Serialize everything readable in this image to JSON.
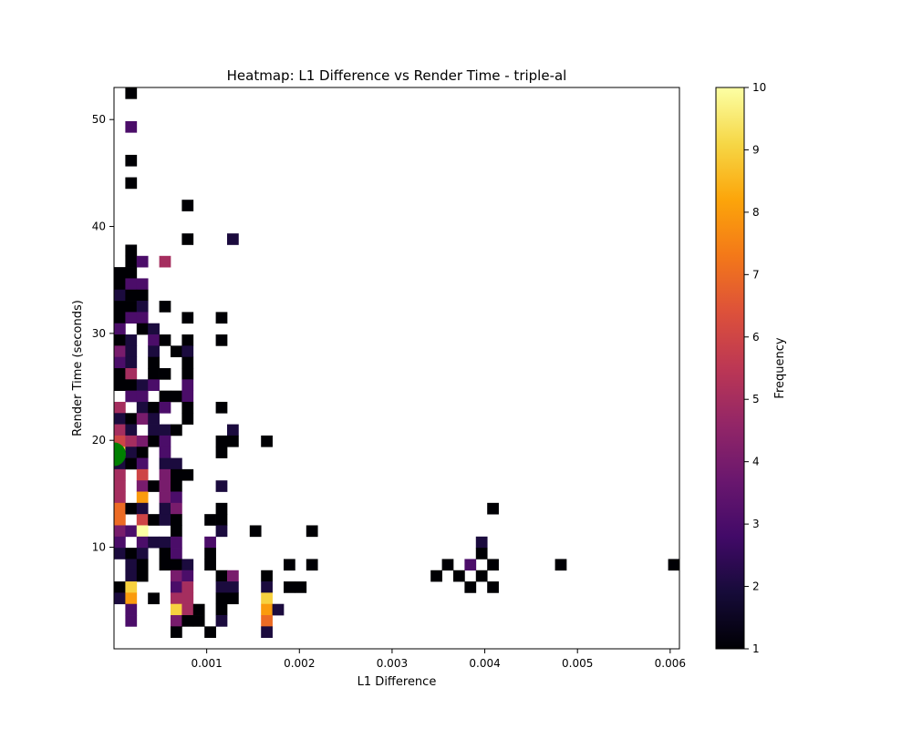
{
  "chart_data": {
    "type": "heatmap",
    "title": "Heatmap: L1 Difference vs Render Time - triple-al",
    "xlabel": "L1 Difference",
    "ylabel": "Render Time (seconds)",
    "xlim": [
      0.0,
      0.0061
    ],
    "ylim": [
      0.5,
      53.0
    ],
    "x_ticks": [
      0.001,
      0.002,
      0.003,
      0.004,
      0.005,
      0.006
    ],
    "x_tick_labels": [
      "0.001",
      "0.002",
      "0.003",
      "0.004",
      "0.005",
      "0.006"
    ],
    "y_ticks": [
      10,
      20,
      30,
      40,
      50
    ],
    "y_tick_labels": [
      "10",
      "20",
      "30",
      "40",
      "50"
    ],
    "bins": {
      "nx": 50,
      "ny": 50
    },
    "colorbar": {
      "label": "Frequency",
      "min": 1,
      "max": 10,
      "ticks": [
        1,
        2,
        3,
        4,
        5,
        6,
        7,
        8,
        9,
        10
      ],
      "tick_labels": [
        "1",
        "2",
        "3",
        "4",
        "5",
        "6",
        "7",
        "8",
        "9",
        "10"
      ],
      "colormap": "inferno"
    },
    "highlight_point": {
      "x": 0.0,
      "y": 18.7,
      "color": "#008000"
    },
    "cells": [
      {
        "ix": 1,
        "iy": 49,
        "v": 1
      },
      {
        "ix": 1,
        "iy": 46,
        "v": 3
      },
      {
        "ix": 1,
        "iy": 43,
        "v": 1
      },
      {
        "ix": 1,
        "iy": 41,
        "v": 1
      },
      {
        "ix": 6,
        "iy": 39,
        "v": 1
      },
      {
        "ix": 6,
        "iy": 36,
        "v": 1
      },
      {
        "ix": 10,
        "iy": 36,
        "v": 2
      },
      {
        "ix": 1,
        "iy": 35,
        "v": 1
      },
      {
        "ix": 1,
        "iy": 34,
        "v": 1
      },
      {
        "ix": 2,
        "iy": 34,
        "v": 3
      },
      {
        "ix": 4,
        "iy": 34,
        "v": 5
      },
      {
        "ix": 0,
        "iy": 33,
        "v": 1
      },
      {
        "ix": 1,
        "iy": 33,
        "v": 1
      },
      {
        "ix": 0,
        "iy": 32,
        "v": 1
      },
      {
        "ix": 1,
        "iy": 32,
        "v": 3
      },
      {
        "ix": 2,
        "iy": 32,
        "v": 3
      },
      {
        "ix": 0,
        "iy": 31,
        "v": 2
      },
      {
        "ix": 1,
        "iy": 31,
        "v": 1
      },
      {
        "ix": 2,
        "iy": 31,
        "v": 1
      },
      {
        "ix": 0,
        "iy": 30,
        "v": 1
      },
      {
        "ix": 1,
        "iy": 30,
        "v": 1
      },
      {
        "ix": 2,
        "iy": 30,
        "v": 2
      },
      {
        "ix": 4,
        "iy": 30,
        "v": 1
      },
      {
        "ix": 0,
        "iy": 29,
        "v": 1
      },
      {
        "ix": 1,
        "iy": 29,
        "v": 3
      },
      {
        "ix": 2,
        "iy": 29,
        "v": 3
      },
      {
        "ix": 6,
        "iy": 29,
        "v": 1
      },
      {
        "ix": 9,
        "iy": 29,
        "v": 1
      },
      {
        "ix": 0,
        "iy": 28,
        "v": 3
      },
      {
        "ix": 2,
        "iy": 28,
        "v": 1
      },
      {
        "ix": 3,
        "iy": 28,
        "v": 2
      },
      {
        "ix": 0,
        "iy": 27,
        "v": 1
      },
      {
        "ix": 1,
        "iy": 27,
        "v": 2
      },
      {
        "ix": 3,
        "iy": 27,
        "v": 3
      },
      {
        "ix": 4,
        "iy": 27,
        "v": 1
      },
      {
        "ix": 6,
        "iy": 27,
        "v": 1
      },
      {
        "ix": 9,
        "iy": 27,
        "v": 1
      },
      {
        "ix": 0,
        "iy": 26,
        "v": 4
      },
      {
        "ix": 1,
        "iy": 26,
        "v": 2
      },
      {
        "ix": 3,
        "iy": 26,
        "v": 2
      },
      {
        "ix": 5,
        "iy": 26,
        "v": 1
      },
      {
        "ix": 6,
        "iy": 26,
        "v": 2
      },
      {
        "ix": 0,
        "iy": 25,
        "v": 3
      },
      {
        "ix": 1,
        "iy": 25,
        "v": 2
      },
      {
        "ix": 3,
        "iy": 25,
        "v": 1
      },
      {
        "ix": 6,
        "iy": 25,
        "v": 1
      },
      {
        "ix": 0,
        "iy": 24,
        "v": 1
      },
      {
        "ix": 1,
        "iy": 24,
        "v": 5
      },
      {
        "ix": 3,
        "iy": 24,
        "v": 1
      },
      {
        "ix": 4,
        "iy": 24,
        "v": 1
      },
      {
        "ix": 6,
        "iy": 24,
        "v": 1
      },
      {
        "ix": 0,
        "iy": 23,
        "v": 1
      },
      {
        "ix": 1,
        "iy": 23,
        "v": 1
      },
      {
        "ix": 2,
        "iy": 23,
        "v": 2
      },
      {
        "ix": 3,
        "iy": 23,
        "v": 3
      },
      {
        "ix": 6,
        "iy": 23,
        "v": 3
      },
      {
        "ix": 1,
        "iy": 22,
        "v": 3
      },
      {
        "ix": 2,
        "iy": 22,
        "v": 3
      },
      {
        "ix": 4,
        "iy": 22,
        "v": 1
      },
      {
        "ix": 5,
        "iy": 22,
        "v": 1
      },
      {
        "ix": 6,
        "iy": 22,
        "v": 3
      },
      {
        "ix": 0,
        "iy": 21,
        "v": 5
      },
      {
        "ix": 2,
        "iy": 21,
        "v": 2
      },
      {
        "ix": 3,
        "iy": 21,
        "v": 1
      },
      {
        "ix": 4,
        "iy": 21,
        "v": 3
      },
      {
        "ix": 6,
        "iy": 21,
        "v": 1
      },
      {
        "ix": 9,
        "iy": 21,
        "v": 1
      },
      {
        "ix": 0,
        "iy": 20,
        "v": 2
      },
      {
        "ix": 1,
        "iy": 20,
        "v": 1
      },
      {
        "ix": 2,
        "iy": 20,
        "v": 4
      },
      {
        "ix": 3,
        "iy": 20,
        "v": 2
      },
      {
        "ix": 6,
        "iy": 20,
        "v": 1
      },
      {
        "ix": 0,
        "iy": 19,
        "v": 5
      },
      {
        "ix": 1,
        "iy": 19,
        "v": 2
      },
      {
        "ix": 3,
        "iy": 19,
        "v": 2
      },
      {
        "ix": 4,
        "iy": 19,
        "v": 2
      },
      {
        "ix": 5,
        "iy": 19,
        "v": 1
      },
      {
        "ix": 10,
        "iy": 19,
        "v": 2
      },
      {
        "ix": 0,
        "iy": 18,
        "v": 6
      },
      {
        "ix": 1,
        "iy": 18,
        "v": 5
      },
      {
        "ix": 2,
        "iy": 18,
        "v": 4
      },
      {
        "ix": 3,
        "iy": 18,
        "v": 1
      },
      {
        "ix": 4,
        "iy": 18,
        "v": 3
      },
      {
        "ix": 9,
        "iy": 18,
        "v": 1
      },
      {
        "ix": 10,
        "iy": 18,
        "v": 1
      },
      {
        "ix": 13,
        "iy": 18,
        "v": 1
      },
      {
        "ix": 0,
        "iy": 17,
        "v": 9
      },
      {
        "ix": 1,
        "iy": 17,
        "v": 2
      },
      {
        "ix": 2,
        "iy": 17,
        "v": 1
      },
      {
        "ix": 4,
        "iy": 17,
        "v": 3
      },
      {
        "ix": 9,
        "iy": 17,
        "v": 1
      },
      {
        "ix": 0,
        "iy": 16,
        "v": 2
      },
      {
        "ix": 1,
        "iy": 16,
        "v": 1
      },
      {
        "ix": 2,
        "iy": 16,
        "v": 3
      },
      {
        "ix": 4,
        "iy": 16,
        "v": 2
      },
      {
        "ix": 5,
        "iy": 16,
        "v": 2
      },
      {
        "ix": 0,
        "iy": 15,
        "v": 5
      },
      {
        "ix": 2,
        "iy": 15,
        "v": 6
      },
      {
        "ix": 4,
        "iy": 15,
        "v": 4
      },
      {
        "ix": 5,
        "iy": 15,
        "v": 1
      },
      {
        "ix": 6,
        "iy": 15,
        "v": 1
      },
      {
        "ix": 0,
        "iy": 14,
        "v": 5
      },
      {
        "ix": 2,
        "iy": 14,
        "v": 4
      },
      {
        "ix": 3,
        "iy": 14,
        "v": 1
      },
      {
        "ix": 4,
        "iy": 14,
        "v": 4
      },
      {
        "ix": 5,
        "iy": 14,
        "v": 1
      },
      {
        "ix": 9,
        "iy": 14,
        "v": 2
      },
      {
        "ix": 0,
        "iy": 13,
        "v": 5
      },
      {
        "ix": 2,
        "iy": 13,
        "v": 8
      },
      {
        "ix": 4,
        "iy": 13,
        "v": 4
      },
      {
        "ix": 5,
        "iy": 13,
        "v": 3
      },
      {
        "ix": 0,
        "iy": 12,
        "v": 7
      },
      {
        "ix": 1,
        "iy": 12,
        "v": 1
      },
      {
        "ix": 2,
        "iy": 12,
        "v": 2
      },
      {
        "ix": 4,
        "iy": 12,
        "v": 2
      },
      {
        "ix": 5,
        "iy": 12,
        "v": 4
      },
      {
        "ix": 9,
        "iy": 12,
        "v": 1
      },
      {
        "ix": 33,
        "iy": 12,
        "v": 1
      },
      {
        "ix": 0,
        "iy": 11,
        "v": 7
      },
      {
        "ix": 2,
        "iy": 11,
        "v": 6
      },
      {
        "ix": 3,
        "iy": 11,
        "v": 1
      },
      {
        "ix": 4,
        "iy": 11,
        "v": 2
      },
      {
        "ix": 5,
        "iy": 11,
        "v": 1
      },
      {
        "ix": 8,
        "iy": 11,
        "v": 1
      },
      {
        "ix": 9,
        "iy": 11,
        "v": 1
      },
      {
        "ix": 0,
        "iy": 10,
        "v": 4
      },
      {
        "ix": 1,
        "iy": 10,
        "v": 3
      },
      {
        "ix": 2,
        "iy": 10,
        "v": 10
      },
      {
        "ix": 5,
        "iy": 10,
        "v": 1
      },
      {
        "ix": 9,
        "iy": 10,
        "v": 2
      },
      {
        "ix": 12,
        "iy": 10,
        "v": 1
      },
      {
        "ix": 17,
        "iy": 10,
        "v": 1
      },
      {
        "ix": 0,
        "iy": 9,
        "v": 3
      },
      {
        "ix": 2,
        "iy": 9,
        "v": 3
      },
      {
        "ix": 3,
        "iy": 9,
        "v": 2
      },
      {
        "ix": 4,
        "iy": 9,
        "v": 2
      },
      {
        "ix": 5,
        "iy": 9,
        "v": 3
      },
      {
        "ix": 8,
        "iy": 9,
        "v": 3
      },
      {
        "ix": 32,
        "iy": 9,
        "v": 2
      },
      {
        "ix": 0,
        "iy": 8,
        "v": 2
      },
      {
        "ix": 1,
        "iy": 8,
        "v": 1
      },
      {
        "ix": 2,
        "iy": 8,
        "v": 2
      },
      {
        "ix": 4,
        "iy": 8,
        "v": 1
      },
      {
        "ix": 5,
        "iy": 8,
        "v": 3
      },
      {
        "ix": 8,
        "iy": 8,
        "v": 1
      },
      {
        "ix": 32,
        "iy": 8,
        "v": 1
      },
      {
        "ix": 1,
        "iy": 7,
        "v": 2
      },
      {
        "ix": 2,
        "iy": 7,
        "v": 1
      },
      {
        "ix": 4,
        "iy": 7,
        "v": 1
      },
      {
        "ix": 5,
        "iy": 7,
        "v": 1
      },
      {
        "ix": 6,
        "iy": 7,
        "v": 2
      },
      {
        "ix": 8,
        "iy": 7,
        "v": 1
      },
      {
        "ix": 15,
        "iy": 7,
        "v": 1
      },
      {
        "ix": 17,
        "iy": 7,
        "v": 1
      },
      {
        "ix": 29,
        "iy": 7,
        "v": 1
      },
      {
        "ix": 31,
        "iy": 7,
        "v": 3
      },
      {
        "ix": 33,
        "iy": 7,
        "v": 1
      },
      {
        "ix": 39,
        "iy": 7,
        "v": 1
      },
      {
        "ix": 49,
        "iy": 7,
        "v": 1
      },
      {
        "ix": 1,
        "iy": 6,
        "v": 2
      },
      {
        "ix": 2,
        "iy": 6,
        "v": 1
      },
      {
        "ix": 5,
        "iy": 6,
        "v": 4
      },
      {
        "ix": 6,
        "iy": 6,
        "v": 3
      },
      {
        "ix": 9,
        "iy": 6,
        "v": 1
      },
      {
        "ix": 10,
        "iy": 6,
        "v": 4
      },
      {
        "ix": 13,
        "iy": 6,
        "v": 1
      },
      {
        "ix": 28,
        "iy": 6,
        "v": 1
      },
      {
        "ix": 30,
        "iy": 6,
        "v": 1
      },
      {
        "ix": 32,
        "iy": 6,
        "v": 1
      },
      {
        "ix": 0,
        "iy": 5,
        "v": 1
      },
      {
        "ix": 1,
        "iy": 5,
        "v": 9
      },
      {
        "ix": 5,
        "iy": 5,
        "v": 3
      },
      {
        "ix": 6,
        "iy": 5,
        "v": 5
      },
      {
        "ix": 9,
        "iy": 5,
        "v": 2
      },
      {
        "ix": 10,
        "iy": 5,
        "v": 2
      },
      {
        "ix": 13,
        "iy": 5,
        "v": 2
      },
      {
        "ix": 15,
        "iy": 5,
        "v": 1
      },
      {
        "ix": 16,
        "iy": 5,
        "v": 1
      },
      {
        "ix": 31,
        "iy": 5,
        "v": 1
      },
      {
        "ix": 33,
        "iy": 5,
        "v": 1
      },
      {
        "ix": 0,
        "iy": 4,
        "v": 2
      },
      {
        "ix": 1,
        "iy": 4,
        "v": 8
      },
      {
        "ix": 3,
        "iy": 4,
        "v": 1
      },
      {
        "ix": 5,
        "iy": 4,
        "v": 5
      },
      {
        "ix": 6,
        "iy": 4,
        "v": 5
      },
      {
        "ix": 9,
        "iy": 4,
        "v": 1
      },
      {
        "ix": 10,
        "iy": 4,
        "v": 1
      },
      {
        "ix": 13,
        "iy": 4,
        "v": 9
      },
      {
        "ix": 1,
        "iy": 3,
        "v": 3
      },
      {
        "ix": 5,
        "iy": 3,
        "v": 9
      },
      {
        "ix": 6,
        "iy": 3,
        "v": 5
      },
      {
        "ix": 7,
        "iy": 3,
        "v": 1
      },
      {
        "ix": 9,
        "iy": 3,
        "v": 1
      },
      {
        "ix": 13,
        "iy": 3,
        "v": 8
      },
      {
        "ix": 14,
        "iy": 3,
        "v": 2
      },
      {
        "ix": 1,
        "iy": 2,
        "v": 3
      },
      {
        "ix": 5,
        "iy": 2,
        "v": 4
      },
      {
        "ix": 6,
        "iy": 2,
        "v": 1
      },
      {
        "ix": 7,
        "iy": 2,
        "v": 1
      },
      {
        "ix": 9,
        "iy": 2,
        "v": 2
      },
      {
        "ix": 13,
        "iy": 2,
        "v": 7
      },
      {
        "ix": 5,
        "iy": 1,
        "v": 1
      },
      {
        "ix": 8,
        "iy": 1,
        "v": 1
      },
      {
        "ix": 13,
        "iy": 1,
        "v": 2
      }
    ]
  }
}
